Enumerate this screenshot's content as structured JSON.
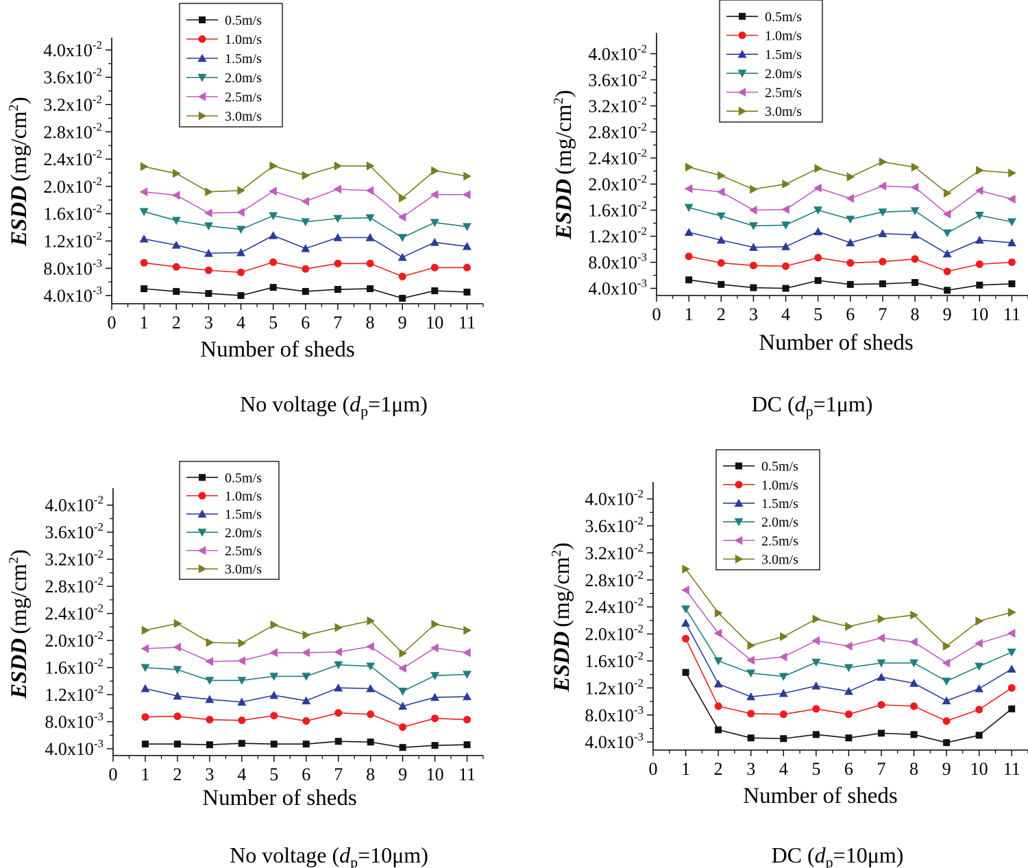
{
  "figure": {
    "series_names": [
      "0.5m/s",
      "1.0m/s",
      "1.5m/s",
      "2.0m/s",
      "2.5m/s",
      "3.0m/s"
    ],
    "series_colors": [
      "#111111",
      "#ee1c1c",
      "#2b3c9c",
      "#1f7f7f",
      "#c45ac4",
      "#7c7c1e"
    ],
    "series_markers": [
      "square",
      "circle",
      "triangle-up",
      "triangle-down",
      "triangle-left",
      "triangle-right"
    ],
    "x_title": "Number of sheds",
    "y_title_bold": "ESDD",
    "y_title_unit": "(mg/cm",
    "y_title_sup": "2",
    "y_title_close": ")"
  },
  "chart_data": [
    {
      "type": "line",
      "caption_prefix": "No voltage (",
      "caption_d": "d",
      "caption_sub": "p",
      "caption_value": "=1μm)",
      "xlabel": "Number of sheds",
      "ylabel": "ESDD (mg/cm2)",
      "xlim": [
        0,
        11.5
      ],
      "ylim": [
        0.0028,
        0.0418
      ],
      "x_ticks": [
        0,
        1,
        2,
        3,
        4,
        5,
        6,
        7,
        8,
        9,
        10,
        11
      ],
      "y_ticks": [
        {
          "value": 0.004,
          "mant": "4.0x10",
          "exp": "-3"
        },
        {
          "value": 0.008,
          "mant": "8.0x10",
          "exp": "-3"
        },
        {
          "value": 0.012,
          "mant": "1.2x10",
          "exp": "-2"
        },
        {
          "value": 0.016,
          "mant": "1.6x10",
          "exp": "-2"
        },
        {
          "value": 0.02,
          "mant": "2.0x10",
          "exp": "-2"
        },
        {
          "value": 0.024,
          "mant": "2.4x10",
          "exp": "-2"
        },
        {
          "value": 0.028,
          "mant": "2.8x10",
          "exp": "-2"
        },
        {
          "value": 0.032,
          "mant": "3.2x10",
          "exp": "-2"
        },
        {
          "value": 0.036,
          "mant": "3.6x10",
          "exp": "-2"
        },
        {
          "value": 0.04,
          "mant": "4.0x10",
          "exp": "-2"
        }
      ],
      "x": [
        1,
        2,
        3,
        4,
        5,
        6,
        7,
        8,
        9,
        10,
        11
      ],
      "legend_position": "top-center",
      "series": [
        {
          "name": "0.5m/s",
          "values": [
            0.005,
            0.0046,
            0.0043,
            0.004,
            0.0052,
            0.0046,
            0.0049,
            0.005,
            0.0036,
            0.0047,
            0.0045
          ]
        },
        {
          "name": "1.0m/s",
          "values": [
            0.0088,
            0.0082,
            0.0077,
            0.0074,
            0.0089,
            0.0079,
            0.0087,
            0.0087,
            0.0068,
            0.0081,
            0.0081
          ]
        },
        {
          "name": "1.5m/s",
          "values": [
            0.0123,
            0.0114,
            0.0102,
            0.0103,
            0.0128,
            0.0109,
            0.0125,
            0.0125,
            0.0096,
            0.0118,
            0.0112
          ]
        },
        {
          "name": "2.0m/s",
          "values": [
            0.0163,
            0.015,
            0.0142,
            0.0137,
            0.0157,
            0.0148,
            0.0153,
            0.0154,
            0.0125,
            0.0147,
            0.0141
          ]
        },
        {
          "name": "2.5m/s",
          "values": [
            0.0192,
            0.0187,
            0.0161,
            0.0162,
            0.0193,
            0.0178,
            0.0196,
            0.0194,
            0.0155,
            0.0188,
            0.0188
          ]
        },
        {
          "name": "3.0m/s",
          "values": [
            0.0229,
            0.0219,
            0.0192,
            0.0194,
            0.023,
            0.0216,
            0.023,
            0.023,
            0.0183,
            0.0223,
            0.0215
          ]
        }
      ]
    },
    {
      "type": "line",
      "caption_prefix": "DC (",
      "caption_d": "d",
      "caption_sub": "p",
      "caption_value": "=1μm)",
      "xlabel": "Number of sheds",
      "ylabel": "ESDD (mg/cm2)",
      "xlim": [
        0,
        11.5
      ],
      "ylim": [
        0.0029,
        0.0432
      ],
      "x_ticks": [
        0,
        1,
        2,
        3,
        4,
        5,
        6,
        7,
        8,
        9,
        10,
        11
      ],
      "y_ticks": [
        {
          "value": 0.004,
          "mant": "4.0x10",
          "exp": "-3"
        },
        {
          "value": 0.008,
          "mant": "8.0x10",
          "exp": "-3"
        },
        {
          "value": 0.012,
          "mant": "1.2x10",
          "exp": "-2"
        },
        {
          "value": 0.016,
          "mant": "1.6x10",
          "exp": "-2"
        },
        {
          "value": 0.02,
          "mant": "2.0x10",
          "exp": "-2"
        },
        {
          "value": 0.024,
          "mant": "2.4x10",
          "exp": "-2"
        },
        {
          "value": 0.028,
          "mant": "2.8x10",
          "exp": "-2"
        },
        {
          "value": 0.032,
          "mant": "3.2x10",
          "exp": "-2"
        },
        {
          "value": 0.036,
          "mant": "3.6x10",
          "exp": "-2"
        },
        {
          "value": 0.04,
          "mant": "4.0x10",
          "exp": "-2"
        }
      ],
      "x": [
        1,
        2,
        3,
        4,
        5,
        6,
        7,
        8,
        9,
        10,
        11
      ],
      "legend_position": "top-center",
      "series": [
        {
          "name": "0.5m/s",
          "values": [
            0.0053,
            0.0046,
            0.0041,
            0.004,
            0.0052,
            0.0046,
            0.0047,
            0.0049,
            0.0037,
            0.0045,
            0.0047
          ]
        },
        {
          "name": "1.0m/s",
          "values": [
            0.0089,
            0.0079,
            0.0075,
            0.0074,
            0.0087,
            0.0079,
            0.0081,
            0.0085,
            0.0066,
            0.0077,
            0.008
          ]
        },
        {
          "name": "1.5m/s",
          "values": [
            0.0126,
            0.0114,
            0.0103,
            0.0104,
            0.0127,
            0.011,
            0.0124,
            0.0122,
            0.0093,
            0.0114,
            0.011
          ]
        },
        {
          "name": "2.0m/s",
          "values": [
            0.0164,
            0.0151,
            0.0136,
            0.0137,
            0.016,
            0.0146,
            0.0157,
            0.0159,
            0.0125,
            0.0152,
            0.0142
          ]
        },
        {
          "name": "2.5m/s",
          "values": [
            0.0193,
            0.0188,
            0.016,
            0.0161,
            0.0194,
            0.0178,
            0.0197,
            0.0195,
            0.0154,
            0.019,
            0.0177
          ]
        },
        {
          "name": "3.0m/s",
          "values": [
            0.0226,
            0.0213,
            0.0192,
            0.02,
            0.0224,
            0.0211,
            0.0234,
            0.0226,
            0.0186,
            0.0221,
            0.0217
          ]
        }
      ]
    },
    {
      "type": "line",
      "caption_prefix": "No voltage (",
      "caption_d": "d",
      "caption_sub": "p",
      "caption_value": "=10μm)",
      "xlabel": "Number of sheds",
      "ylabel": "ESDD (mg/cm2)",
      "xlim": [
        0,
        11.5
      ],
      "ylim": [
        0.003,
        0.0425
      ],
      "x_ticks": [
        0,
        1,
        2,
        3,
        4,
        5,
        6,
        7,
        8,
        9,
        10,
        11
      ],
      "y_ticks": [
        {
          "value": 0.004,
          "mant": "4.0x10",
          "exp": "-3"
        },
        {
          "value": 0.008,
          "mant": "8.0x10",
          "exp": "-3"
        },
        {
          "value": 0.012,
          "mant": "1.2x10",
          "exp": "-2"
        },
        {
          "value": 0.016,
          "mant": "1.6x10",
          "exp": "-2"
        },
        {
          "value": 0.02,
          "mant": "2.0x10",
          "exp": "-2"
        },
        {
          "value": 0.024,
          "mant": "2.4x10",
          "exp": "-2"
        },
        {
          "value": 0.028,
          "mant": "2.8x10",
          "exp": "-2"
        },
        {
          "value": 0.032,
          "mant": "3.2x10",
          "exp": "-2"
        },
        {
          "value": 0.036,
          "mant": "3.6x10",
          "exp": "-2"
        },
        {
          "value": 0.04,
          "mant": "4.0x10",
          "exp": "-2"
        }
      ],
      "x": [
        1,
        2,
        3,
        4,
        5,
        6,
        7,
        8,
        9,
        10,
        11
      ],
      "legend_position": "top-center",
      "series": [
        {
          "name": "0.5m/s",
          "values": [
            0.0047,
            0.0047,
            0.0046,
            0.0048,
            0.0047,
            0.0047,
            0.0051,
            0.005,
            0.0042,
            0.0045,
            0.0046
          ]
        },
        {
          "name": "1.0m/s",
          "values": [
            0.0087,
            0.0088,
            0.0083,
            0.0082,
            0.0089,
            0.0081,
            0.0093,
            0.0091,
            0.0072,
            0.0085,
            0.0083
          ]
        },
        {
          "name": "1.5m/s",
          "values": [
            0.0129,
            0.0118,
            0.0113,
            0.0109,
            0.0119,
            0.0111,
            0.013,
            0.0129,
            0.0103,
            0.0116,
            0.0117
          ]
        },
        {
          "name": "2.0m/s",
          "values": [
            0.016,
            0.0157,
            0.0141,
            0.0141,
            0.0147,
            0.0147,
            0.0164,
            0.0162,
            0.0125,
            0.0148,
            0.015
          ]
        },
        {
          "name": "2.5m/s",
          "values": [
            0.0188,
            0.019,
            0.0169,
            0.017,
            0.0182,
            0.0182,
            0.0183,
            0.0191,
            0.0159,
            0.0189,
            0.0182
          ]
        },
        {
          "name": "3.0m/s",
          "values": [
            0.0215,
            0.0225,
            0.0197,
            0.0196,
            0.0223,
            0.0208,
            0.0219,
            0.0229,
            0.0181,
            0.0224,
            0.0215
          ]
        }
      ]
    },
    {
      "type": "line",
      "caption_prefix": "DC (",
      "caption_d": "d",
      "caption_sub": "p",
      "caption_value": "=10μm)",
      "xlabel": "Number of sheds",
      "ylabel": "ESDD (mg/cm2)",
      "xlim": [
        0,
        11.5
      ],
      "ylim": [
        0.0028,
        0.0425
      ],
      "x_ticks": [
        0,
        1,
        2,
        3,
        4,
        5,
        6,
        7,
        8,
        9,
        10,
        11
      ],
      "y_ticks": [
        {
          "value": 0.004,
          "mant": "4.0x10",
          "exp": "-3"
        },
        {
          "value": 0.008,
          "mant": "8.0x10",
          "exp": "-3"
        },
        {
          "value": 0.012,
          "mant": "1.2x10",
          "exp": "-2"
        },
        {
          "value": 0.016,
          "mant": "1.6x10",
          "exp": "-2"
        },
        {
          "value": 0.02,
          "mant": "2.0x10",
          "exp": "-2"
        },
        {
          "value": 0.024,
          "mant": "2.4x10",
          "exp": "-2"
        },
        {
          "value": 0.028,
          "mant": "2.8x10",
          "exp": "-2"
        },
        {
          "value": 0.032,
          "mant": "3.2x10",
          "exp": "-2"
        },
        {
          "value": 0.036,
          "mant": "3.6x10",
          "exp": "-2"
        },
        {
          "value": 0.04,
          "mant": "4.0x10",
          "exp": "-2"
        }
      ],
      "x": [
        1,
        2,
        3,
        4,
        5,
        6,
        7,
        8,
        9,
        10,
        11
      ],
      "legend_position": "top-center",
      "series": [
        {
          "name": "0.5m/s",
          "values": [
            0.0143,
            0.0058,
            0.0046,
            0.0045,
            0.0051,
            0.0046,
            0.0053,
            0.0051,
            0.0039,
            0.005,
            0.0089
          ]
        },
        {
          "name": "1.0m/s",
          "values": [
            0.0193,
            0.0093,
            0.0082,
            0.0081,
            0.0089,
            0.0081,
            0.0095,
            0.0093,
            0.0071,
            0.0088,
            0.012
          ]
        },
        {
          "name": "1.5m/s",
          "values": [
            0.0216,
            0.0126,
            0.0107,
            0.0112,
            0.0123,
            0.0115,
            0.0136,
            0.0127,
            0.0101,
            0.0119,
            0.0148
          ]
        },
        {
          "name": "2.0m/s",
          "values": [
            0.0237,
            0.016,
            0.0142,
            0.0137,
            0.0158,
            0.015,
            0.0157,
            0.0157,
            0.013,
            0.0152,
            0.0173
          ]
        },
        {
          "name": "2.5m/s",
          "values": [
            0.0265,
            0.0201,
            0.0161,
            0.0166,
            0.019,
            0.0182,
            0.0194,
            0.0188,
            0.0157,
            0.0186,
            0.0201
          ]
        },
        {
          "name": "3.0m/s",
          "values": [
            0.0296,
            0.0231,
            0.0183,
            0.0196,
            0.0222,
            0.0211,
            0.0222,
            0.0228,
            0.0182,
            0.0219,
            0.0232
          ]
        }
      ]
    }
  ]
}
